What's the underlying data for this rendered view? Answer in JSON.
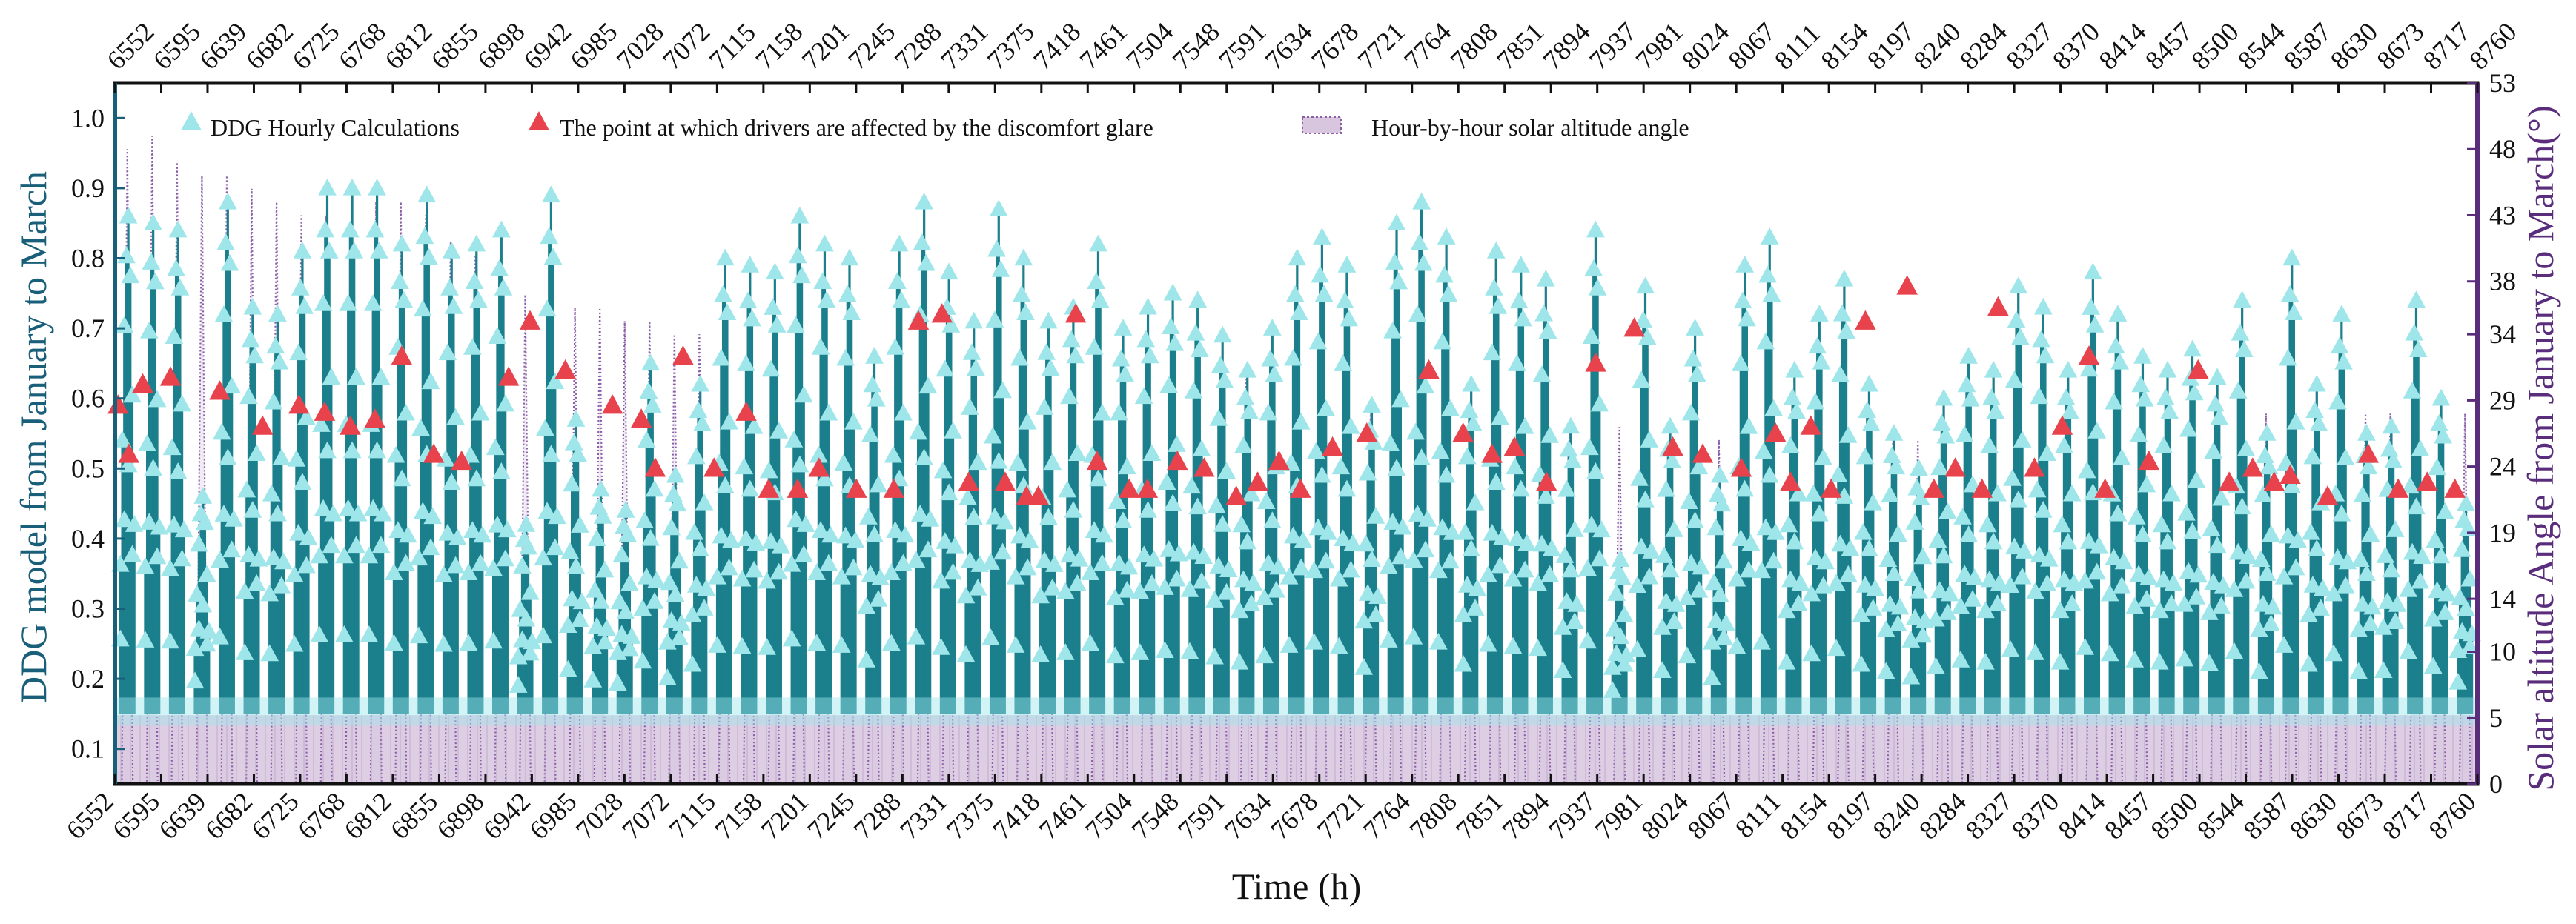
{
  "chart_data": {
    "type": "line",
    "title": "",
    "xlabel": "Time (h)",
    "ylabel_left": "DDG model from January to March",
    "ylabel_right": "Solar altitude Angle from January to March(°)",
    "xlim": [
      6552,
      8760
    ],
    "ylim_left": [
      0.05,
      1.05
    ],
    "ylim_right": [
      0,
      53
    ],
    "x_tick_labels": [
      "6552",
      "6595",
      "6639",
      "6682",
      "6725",
      "6768",
      "6812",
      "6855",
      "6898",
      "6942",
      "6985",
      "7028",
      "7072",
      "7115",
      "7158",
      "7201",
      "7245",
      "7288",
      "7331",
      "7375",
      "7418",
      "7461",
      "7504",
      "7548",
      "7591",
      "7634",
      "7678",
      "7721",
      "7764",
      "7808",
      "7851",
      "7894",
      "7937",
      "7981",
      "8024",
      "8067",
      "8111",
      "8154",
      "8197",
      "8240",
      "8284",
      "8327",
      "8370",
      "8414",
      "8457",
      "8500",
      "8544",
      "8587",
      "8630",
      "8673",
      "8717",
      "8760"
    ],
    "y_left_ticks": [
      "0.1",
      "0.2",
      "0.3",
      "0.4",
      "0.5",
      "0.6",
      "0.7",
      "0.8",
      "0.9",
      "1.0"
    ],
    "y_right_ticks": [
      "0",
      "5",
      "10",
      "14",
      "19",
      "24",
      "29",
      "34",
      "38",
      "43",
      "48",
      "53"
    ],
    "grid": false,
    "legend_position": "top",
    "series": [
      {
        "name": "DDG Hourly Calculations",
        "kind": "stem-triangle",
        "color": "#9ee6ea",
        "stem_color": "#1b7f8c",
        "baseline": 0.15,
        "daily_peaks": [
          0.86,
          0.85,
          0.84,
          0.46,
          0.88,
          0.73,
          0.72,
          0.81,
          0.9,
          0.9,
          0.9,
          0.82,
          0.89,
          0.81,
          0.82,
          0.84,
          0.42,
          0.89,
          0.57,
          0.47,
          0.44,
          0.65,
          0.49,
          0.62,
          0.8,
          0.79,
          0.78,
          0.86,
          0.82,
          0.8,
          0.66,
          0.82,
          0.88,
          0.78,
          0.71,
          0.87,
          0.8,
          0.71,
          0.73,
          0.82,
          0.7,
          0.73,
          0.75,
          0.74,
          0.69,
          0.64,
          0.7,
          0.8,
          0.83,
          0.79,
          0.59,
          0.85,
          0.88,
          0.83,
          0.62,
          0.81,
          0.79,
          0.77,
          0.56,
          0.84,
          0.37,
          0.76,
          0.56,
          0.7,
          0.49,
          0.79,
          0.83,
          0.64,
          0.72,
          0.77,
          0.62,
          0.55,
          0.5,
          0.6,
          0.66,
          0.64,
          0.76,
          0.73,
          0.64,
          0.78,
          0.72,
          0.66,
          0.64,
          0.67,
          0.63,
          0.74,
          0.55,
          0.8,
          0.62,
          0.72,
          0.55,
          0.56,
          0.74,
          0.6,
          0.45
        ]
      },
      {
        "name": "The point at which drivers are affected by the discomfort glare",
        "kind": "scatter-triangle",
        "color": "#e8434c",
        "x": [
          6555,
          6565,
          6578,
          6604,
          6650,
          6690,
          6724,
          6748,
          6772,
          6795,
          6820,
          6850,
          6876,
          6920,
          6940,
          6973,
          7017,
          7044,
          7057,
          7083,
          7112,
          7142,
          7163,
          7190,
          7210,
          7245,
          7280,
          7303,
          7325,
          7350,
          7384,
          7404,
          7415,
          7450,
          7470,
          7500,
          7517,
          7545,
          7570,
          7600,
          7620,
          7640,
          7660,
          7690,
          7722,
          7780,
          7812,
          7839,
          7860,
          7890,
          7936,
          7972,
          8008,
          8036,
          8072,
          8104,
          8118,
          8137,
          8156,
          8188,
          8227,
          8252,
          8272,
          8297,
          8312,
          8346,
          8372,
          8397,
          8412,
          8453,
          8499,
          8528,
          8550,
          8570,
          8585,
          8620,
          8658,
          8686,
          8713,
          8739
        ],
        "y": [
          0.59,
          0.52,
          0.62,
          0.63,
          0.61,
          0.56,
          0.59,
          0.58,
          0.56,
          0.57,
          0.66,
          0.52,
          0.51,
          0.63,
          0.71,
          0.64,
          0.59,
          0.57,
          0.5,
          0.66,
          0.5,
          0.58,
          0.47,
          0.47,
          0.5,
          0.47,
          0.47,
          0.71,
          0.72,
          0.48,
          0.48,
          0.46,
          0.46,
          0.72,
          0.51,
          0.47,
          0.47,
          0.51,
          0.5,
          0.46,
          0.48,
          0.51,
          0.47,
          0.53,
          0.55,
          0.64,
          0.55,
          0.52,
          0.53,
          0.48,
          0.65,
          0.7,
          0.53,
          0.52,
          0.5,
          0.55,
          0.48,
          0.56,
          0.47,
          0.71,
          0.76,
          0.47,
          0.5,
          0.47,
          0.73,
          0.5,
          0.56,
          0.66,
          0.47,
          0.51,
          0.64,
          0.48,
          0.5,
          0.48,
          0.49,
          0.46,
          0.52,
          0.47,
          0.48,
          0.47
        ]
      },
      {
        "name": "Hour-by-hour solar altitude angle",
        "kind": "dotted-area",
        "color": "#8a5fa8",
        "fill": "#d8c6df",
        "axis": "right",
        "daily_peaks": [
          48,
          49,
          47,
          46,
          46,
          45,
          44,
          43,
          43,
          42,
          44,
          44,
          43,
          41,
          40,
          39,
          37,
          37,
          36,
          36,
          35,
          35,
          34,
          34,
          33,
          33,
          32,
          32,
          32,
          31,
          32,
          32,
          33,
          33,
          33,
          33,
          33,
          33,
          32,
          32,
          32,
          32,
          31,
          31,
          31,
          31,
          30,
          30,
          30,
          29,
          29,
          29,
          29,
          28,
          28,
          28,
          28,
          27,
          27,
          27,
          27,
          26,
          26,
          26,
          26,
          26,
          26,
          26,
          26,
          26,
          26,
          26,
          26,
          26,
          26,
          26,
          26,
          26,
          27,
          27,
          27,
          27,
          27,
          27,
          28,
          28,
          28,
          28,
          28,
          28,
          28,
          28,
          28,
          28,
          28
        ]
      }
    ]
  },
  "colors": {
    "left_axis": "#1a5f7a",
    "right_axis": "#5a2d7c",
    "frame": "#111111"
  }
}
